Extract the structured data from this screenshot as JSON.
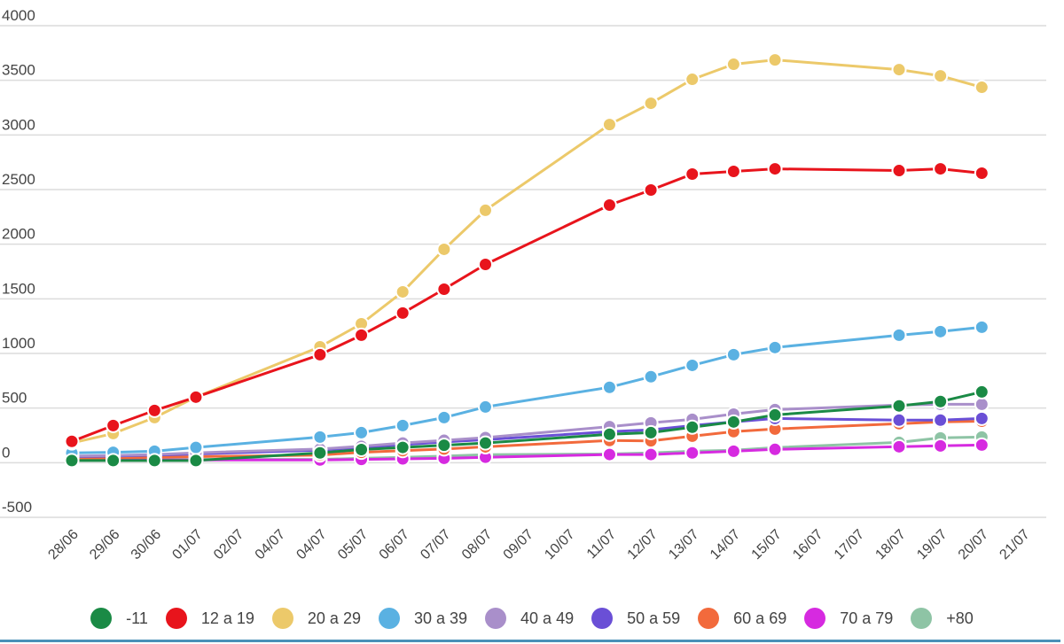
{
  "chart_data": {
    "type": "line",
    "title": "",
    "xlabel": "",
    "ylabel": "",
    "ylim": [
      -500,
      4000
    ],
    "yticks": [
      -500,
      0,
      500,
      1000,
      1500,
      2000,
      2500,
      3000,
      3500,
      4000
    ],
    "grid": true,
    "legend_position": "bottom",
    "categories": [
      "28/06",
      "29/06",
      "30/06",
      "01/07",
      "02/07",
      "04/07",
      "04/07",
      "05/07",
      "06/07",
      "07/07",
      "08/07",
      "09/07",
      "10/07",
      "11/07",
      "12/07",
      "13/07",
      "14/07",
      "15/07",
      "16/07",
      "17/07",
      "18/07",
      "19/07",
      "20/07",
      "21/07"
    ],
    "series": [
      {
        "name": "-11",
        "color": "#1a8a45",
        "values": [
          20,
          20,
          20,
          20,
          null,
          null,
          90,
          120,
          140,
          160,
          180,
          null,
          null,
          260,
          275,
          325,
          373,
          437,
          null,
          null,
          520,
          560,
          648,
          null
        ]
      },
      {
        "name": "12 a 19",
        "color": "#e8141c",
        "values": [
          195,
          340,
          478,
          600,
          null,
          null,
          989,
          1167,
          1370,
          1588,
          1815,
          null,
          null,
          2358,
          2496,
          2642,
          2666,
          2690,
          null,
          null,
          2674,
          2690,
          2650,
          null
        ]
      },
      {
        "name": "20 a 29",
        "color": "#ecc96a",
        "values": [
          180,
          267,
          413,
          600,
          null,
          null,
          1061,
          1272,
          1564,
          1953,
          2310,
          null,
          null,
          3095,
          3290,
          3509,
          3647,
          3687,
          null,
          null,
          3598,
          3541,
          3436,
          null
        ]
      },
      {
        "name": "30 a 39",
        "color": "#5ab1e2",
        "values": [
          90,
          95,
          105,
          140,
          null,
          null,
          235,
          275,
          340,
          413,
          510,
          null,
          null,
          690,
          787,
          891,
          989,
          1054,
          null,
          null,
          1167,
          1200,
          1240,
          null
        ]
      },
      {
        "name": "40 a 49",
        "color": "#a98fca",
        "values": [
          60,
          65,
          75,
          90,
          null,
          null,
          125,
          150,
          180,
          205,
          230,
          null,
          null,
          330,
          365,
          397,
          445,
          486,
          null,
          null,
          527,
          535,
          535,
          null
        ]
      },
      {
        "name": "50 a 59",
        "color": "#6a4fd6",
        "values": [
          55,
          60,
          70,
          80,
          null,
          null,
          115,
          140,
          165,
          190,
          210,
          null,
          null,
          285,
          300,
          340,
          373,
          405,
          null,
          null,
          390,
          390,
          405,
          null
        ]
      },
      {
        "name": "60 a 69",
        "color": "#f26a3c",
        "values": [
          40,
          45,
          50,
          55,
          null,
          null,
          70,
          95,
          110,
          125,
          145,
          null,
          null,
          203,
          200,
          243,
          284,
          308,
          null,
          null,
          357,
          373,
          380,
          null
        ]
      },
      {
        "name": "70 a 79",
        "color": "#d62ae0",
        "values": [
          25,
          25,
          25,
          25,
          null,
          null,
          25,
          30,
          35,
          40,
          50,
          null,
          null,
          75,
          75,
          90,
          105,
          122,
          null,
          null,
          146,
          154,
          162,
          null
        ]
      },
      {
        "name": "+80",
        "color": "#8ec4a5",
        "values": [
          30,
          30,
          30,
          30,
          null,
          null,
          30,
          40,
          50,
          60,
          73,
          null,
          null,
          80,
          90,
          105,
          114,
          138,
          null,
          null,
          186,
          227,
          235,
          null
        ]
      }
    ]
  }
}
